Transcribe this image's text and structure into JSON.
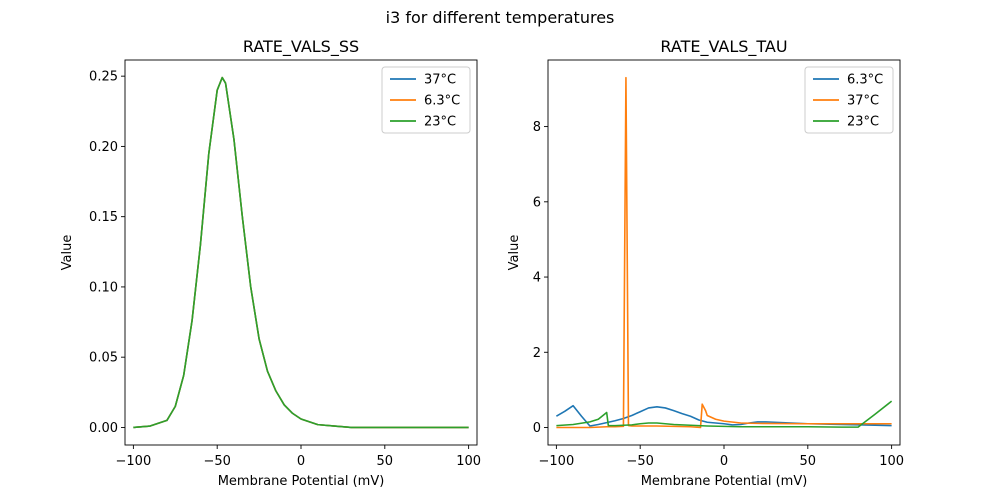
{
  "figure": {
    "title": "i3 for different temperatures"
  },
  "chart_data": [
    {
      "type": "line",
      "title": "RATE_VALS_SS",
      "xlabel": "Membrane Potential (mV)",
      "ylabel": "Value",
      "xlim": [
        -105,
        105
      ],
      "ylim": [
        -0.0125,
        0.2615
      ],
      "xticks": [
        -100,
        -50,
        0,
        50,
        100
      ],
      "xtick_labels": [
        "−100",
        "−50",
        "0",
        "50",
        "100"
      ],
      "yticks": [
        0.0,
        0.05,
        0.1,
        0.15,
        0.2,
        0.25
      ],
      "ytick_labels": [
        "0.00",
        "0.05",
        "0.10",
        "0.15",
        "0.20",
        "0.25"
      ],
      "legend": "top-right",
      "grid": false,
      "x": [
        -100,
        -90,
        -80,
        -75,
        -70,
        -65,
        -60,
        -55,
        -50,
        -47,
        -45,
        -40,
        -35,
        -30,
        -25,
        -20,
        -15,
        -10,
        -5,
        0,
        10,
        20,
        30,
        50,
        100
      ],
      "series": [
        {
          "name": "37°C",
          "color": "#1f77b4",
          "values": [
            0.0,
            0.001,
            0.005,
            0.015,
            0.037,
            0.076,
            0.13,
            0.195,
            0.24,
            0.249,
            0.245,
            0.205,
            0.15,
            0.1,
            0.063,
            0.04,
            0.026,
            0.016,
            0.01,
            0.006,
            0.002,
            0.001,
            0.0,
            0.0,
            0.0
          ]
        },
        {
          "name": "6.3°C",
          "color": "#ff7f0e",
          "values": [
            0.0,
            0.001,
            0.005,
            0.015,
            0.037,
            0.076,
            0.13,
            0.195,
            0.24,
            0.249,
            0.245,
            0.205,
            0.15,
            0.1,
            0.063,
            0.04,
            0.026,
            0.016,
            0.01,
            0.006,
            0.002,
            0.001,
            0.0,
            0.0,
            0.0
          ]
        },
        {
          "name": "23°C",
          "color": "#2ca02c",
          "values": [
            0.0,
            0.001,
            0.005,
            0.015,
            0.037,
            0.076,
            0.13,
            0.195,
            0.24,
            0.249,
            0.245,
            0.205,
            0.15,
            0.1,
            0.063,
            0.04,
            0.026,
            0.016,
            0.01,
            0.006,
            0.002,
            0.001,
            0.0,
            0.0,
            0.0
          ]
        }
      ]
    },
    {
      "type": "line",
      "title": "RATE_VALS_TAU",
      "xlabel": "Membrane Potential (mV)",
      "ylabel": "Value",
      "xlim": [
        -105,
        105
      ],
      "ylim": [
        -0.465,
        9.77
      ],
      "xticks": [
        -100,
        -50,
        0,
        50,
        100
      ],
      "xtick_labels": [
        "−100",
        "−50",
        "0",
        "50",
        "100"
      ],
      "yticks": [
        0,
        2,
        4,
        6,
        8
      ],
      "ytick_labels": [
        "0",
        "2",
        "4",
        "6",
        "8"
      ],
      "legend": "top-right",
      "grid": false,
      "series": [
        {
          "name": "6.3°C",
          "color": "#1f77b4",
          "x": [
            -100,
            -95,
            -90,
            -85,
            -80,
            -75,
            -70,
            -65,
            -60,
            -55,
            -50,
            -45,
            -40,
            -35,
            -30,
            -25,
            -20,
            -15,
            -10,
            -5,
            0,
            5,
            10,
            15,
            20,
            25,
            30,
            40,
            50,
            60,
            70,
            80,
            90,
            100
          ],
          "values": [
            0.3,
            0.43,
            0.58,
            0.3,
            0.04,
            0.08,
            0.13,
            0.18,
            0.24,
            0.32,
            0.42,
            0.52,
            0.55,
            0.52,
            0.45,
            0.37,
            0.3,
            0.2,
            0.14,
            0.12,
            0.1,
            0.07,
            0.08,
            0.12,
            0.15,
            0.15,
            0.14,
            0.12,
            0.1,
            0.09,
            0.08,
            0.07,
            0.06,
            0.05
          ]
        },
        {
          "name": "37°C",
          "color": "#ff7f0e",
          "x": [
            -100,
            -80,
            -75,
            -70,
            -65,
            -60,
            -58.5,
            -57,
            -55,
            -50,
            -40,
            -30,
            -20,
            -14,
            -13,
            -11,
            -10,
            -5,
            0,
            10,
            20,
            50,
            80,
            100
          ],
          "values": [
            0.0,
            0.0,
            0.01,
            0.02,
            0.02,
            0.03,
            9.3,
            0.05,
            0.04,
            0.04,
            0.04,
            0.03,
            0.02,
            0.0,
            0.62,
            0.45,
            0.32,
            0.22,
            0.17,
            0.12,
            0.11,
            0.1,
            0.1,
            0.1
          ]
        },
        {
          "name": "23°C",
          "color": "#2ca02c",
          "x": [
            -100,
            -90,
            -80,
            -75,
            -70,
            -69,
            -65,
            -60,
            -55,
            -50,
            -45,
            -40,
            -35,
            -30,
            -20,
            -10,
            0,
            10,
            20,
            30,
            50,
            70,
            80,
            90,
            100
          ],
          "values": [
            0.05,
            0.08,
            0.15,
            0.22,
            0.4,
            0.05,
            0.05,
            0.06,
            0.07,
            0.1,
            0.12,
            0.12,
            0.1,
            0.08,
            0.06,
            0.04,
            0.03,
            0.02,
            0.02,
            0.02,
            0.02,
            0.01,
            0.01,
            0.35,
            0.7
          ]
        }
      ]
    }
  ]
}
